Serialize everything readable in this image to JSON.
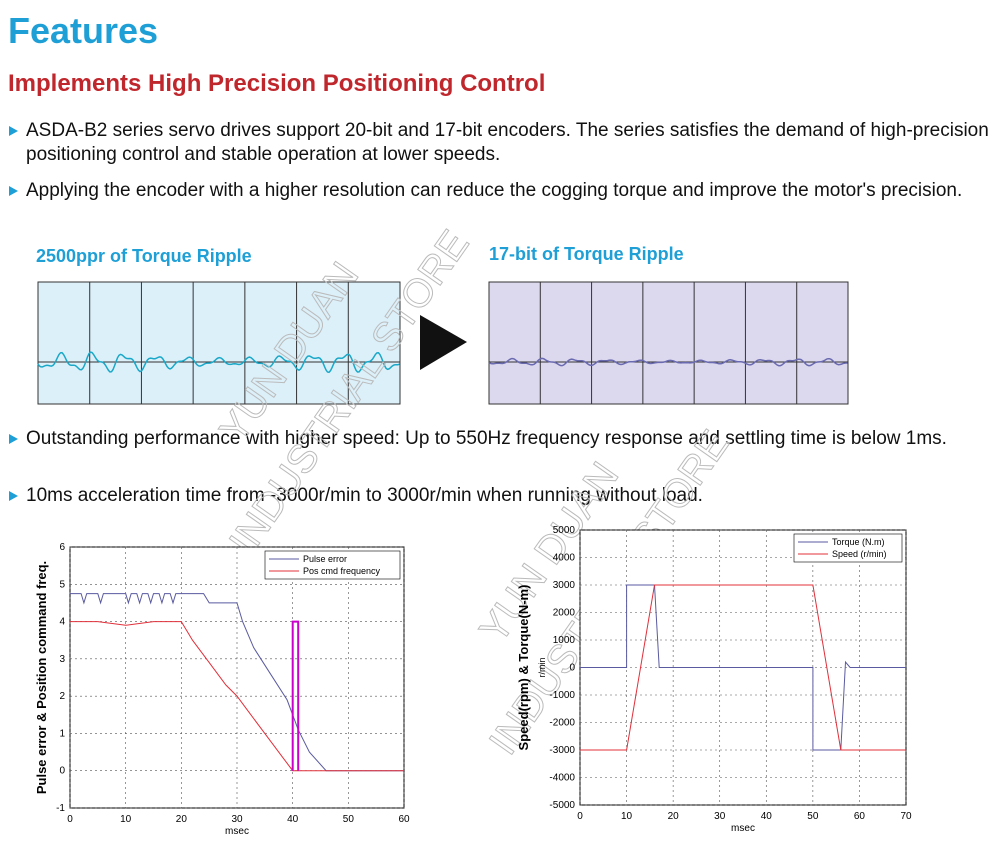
{
  "header": {
    "title": "Features",
    "subtitle": "Implements High Precision Positioning Control"
  },
  "bullets": [
    "ASDA-B2 series servo drives support 20-bit and 17-bit encoders. The series satisfies the demand of high-precision positioning control and stable operation at lower speeds.",
    "Applying the encoder with a higher resolution can reduce the cogging torque and improve the motor's precision.",
    "Outstanding performance with higher speed: Up to 550Hz frequency response and settling time is below 1ms.",
    "10ms acceleration time from -3000r/min to 3000r/min when running without load."
  ],
  "ripple": {
    "left_title": "2500ppr of Torque Ripple",
    "right_title": "17-bit of Torque Ripple"
  },
  "watermark": [
    "YUN DUAN",
    "INDUSTRIAL STORE"
  ],
  "charts": [
    {
      "type": "line",
      "ylabel": "Pulse error & Position command freq.",
      "xlabel": "msec",
      "xlim": [
        0,
        60
      ],
      "xticks": [
        0,
        10,
        20,
        30,
        40,
        50,
        60
      ],
      "ylim": [
        -1,
        6
      ],
      "yticks": [
        -1,
        0,
        1,
        2,
        3,
        4,
        5,
        6
      ],
      "grid": true,
      "legend": "top-right",
      "series": [
        {
          "name": "Pulse error",
          "color": "#5a5aa0",
          "x": [
            0,
            2,
            2.5,
            3,
            5,
            5.5,
            6,
            10,
            10.5,
            11,
            12,
            12.5,
            13,
            14,
            14.5,
            15,
            16,
            16.5,
            17,
            18,
            18.5,
            19,
            20,
            24,
            25,
            30,
            31,
            33,
            36,
            39,
            41,
            43,
            46,
            60
          ],
          "values": [
            4.75,
            4.75,
            4.5,
            4.75,
            4.75,
            4.5,
            4.75,
            4.75,
            4.5,
            4.75,
            4.75,
            4.5,
            4.75,
            4.75,
            4.5,
            4.75,
            4.75,
            4.5,
            4.75,
            4.75,
            4.5,
            4.75,
            4.75,
            4.75,
            4.5,
            4.5,
            4,
            3.3,
            2.6,
            1.9,
            1.1,
            0.5,
            0,
            0
          ]
        },
        {
          "name": "Pos cmd frequency",
          "color": "#e0303a",
          "x": [
            0,
            5,
            10,
            15,
            20,
            22,
            25,
            28,
            30,
            32,
            35,
            38,
            40,
            40.5,
            60
          ],
          "values": [
            4,
            4,
            3.9,
            4,
            4,
            3.5,
            2.9,
            2.3,
            2,
            1.6,
            1,
            0.4,
            0,
            0,
            0
          ]
        },
        {
          "color": "#cc00cc",
          "x": [
            40,
            40,
            41,
            41
          ],
          "values": [
            0,
            4,
            4,
            0
          ]
        }
      ]
    },
    {
      "type": "line",
      "ylabel": "Speed(rpm) & Torque(N-m)",
      "annotation": "r/min",
      "xlabel": "msec",
      "xlim": [
        0,
        70
      ],
      "xticks": [
        0,
        10,
        20,
        30,
        40,
        50,
        60,
        70
      ],
      "ylim": [
        -5000,
        5000
      ],
      "yticks": [
        -5000,
        -4000,
        -3000,
        -2000,
        -1000,
        0,
        1000,
        2000,
        3000,
        4000,
        5000
      ],
      "grid": true,
      "legend": "top-right",
      "series": [
        {
          "name": "Torque (N.m)",
          "color": "#5a5aa0",
          "x": [
            0,
            10,
            10,
            16,
            17,
            50,
            50,
            56,
            57,
            58,
            70
          ],
          "values": [
            0,
            0,
            3000,
            3000,
            0,
            0,
            -3000,
            -3000,
            200,
            0,
            0
          ]
        },
        {
          "name": "Speed (r/min)",
          "color": "#e0303a",
          "x": [
            0,
            10,
            16,
            50,
            56,
            70
          ],
          "values": [
            -3000,
            -3000,
            3000,
            3000,
            -3000,
            -3000
          ]
        }
      ]
    }
  ]
}
